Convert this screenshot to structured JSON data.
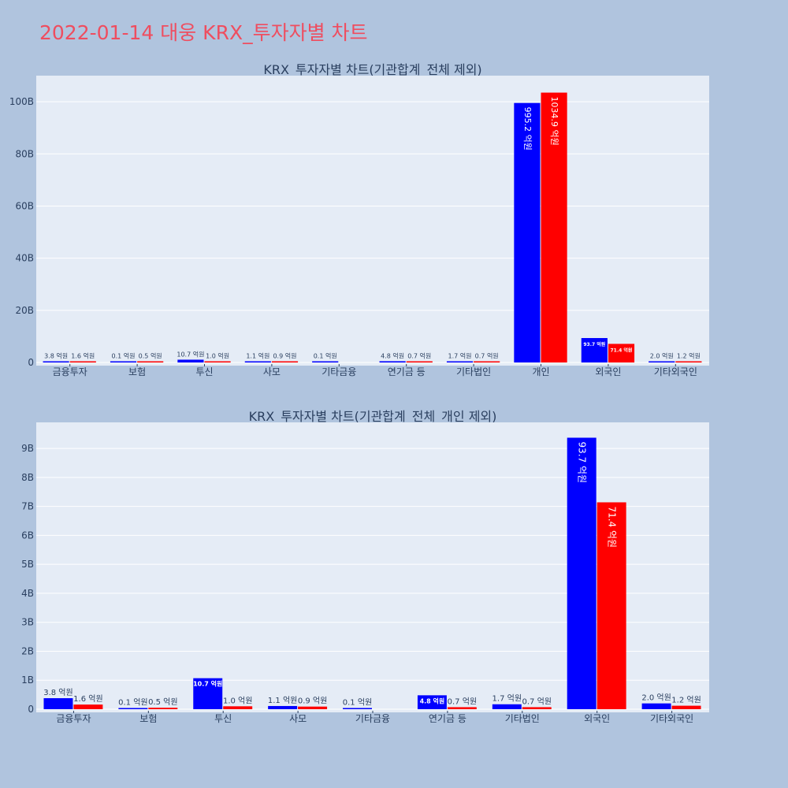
{
  "page": {
    "title": "2022-01-14 대웅 KRX_투자자별 차트"
  },
  "colors": {
    "background": "#b0c4de",
    "plot_bg": "#e5ecf6",
    "title": "#ef4d5f",
    "series_a": "#0000ff",
    "series_b": "#ff0000",
    "grid": "#ffffff",
    "text": "#2a3f5f"
  },
  "chart_data": [
    {
      "type": "bar",
      "title": "KRX_투자자별 차트(기관합계_전체 제외)",
      "categories": [
        "금융투자",
        "보험",
        "투신",
        "사모",
        "기타금융",
        "연기금 등",
        "기타법인",
        "개인",
        "외국인",
        "기타외국인"
      ],
      "series": [
        {
          "color": "#0000ff",
          "values": [
            0.38,
            0.01,
            1.07,
            0.11,
            0.01,
            0.48,
            0.17,
            99.52,
            9.37,
            0.2
          ],
          "labels": [
            "3.8 억원",
            "0.1 억원",
            "10.7 억원",
            "1.1 억원",
            "0.1 억원",
            "4.8 억원",
            "1.7 억원",
            "995.2 억원",
            "93.7 억원",
            "2.0 억원"
          ]
        },
        {
          "color": "#ff0000",
          "values": [
            0.16,
            0.05,
            0.1,
            0.09,
            null,
            0.07,
            0.07,
            103.49,
            7.14,
            0.12
          ],
          "labels": [
            "1.6 억원",
            "0.5 억원",
            "1.0 억원",
            "0.9 억원",
            "",
            "0.7 억원",
            "0.7 억원",
            "1034.9 억원",
            "71.4 억원",
            "1.2 억원"
          ]
        }
      ],
      "y_unit": "B",
      "ylim": [
        0,
        110
      ],
      "yticks": [
        0,
        20,
        40,
        60,
        80,
        100
      ],
      "ytick_labels": [
        "0",
        "20B",
        "40B",
        "60B",
        "80B",
        "100B"
      ],
      "grid": true
    },
    {
      "type": "bar",
      "title": "KRX_투자자별 차트(기관합계_전체_개인 제외)",
      "categories": [
        "금융투자",
        "보험",
        "투신",
        "사모",
        "기타금융",
        "연기금 등",
        "기타법인",
        "외국인",
        "기타외국인"
      ],
      "series": [
        {
          "color": "#0000ff",
          "values": [
            0.38,
            0.01,
            1.07,
            0.11,
            0.01,
            0.48,
            0.17,
            9.37,
            0.2
          ],
          "labels": [
            "3.8 억원",
            "0.1 억원",
            "10.7 억원",
            "1.1 억원",
            "0.1 억원",
            "4.8 억원",
            "1.7 억원",
            "93.7 억원",
            "2.0 억원"
          ]
        },
        {
          "color": "#ff0000",
          "values": [
            0.16,
            0.05,
            0.1,
            0.09,
            null,
            0.07,
            0.07,
            7.14,
            0.12
          ],
          "labels": [
            "1.6 억원",
            "0.5 억원",
            "1.0 억원",
            "0.9 억원",
            "",
            "0.7 억원",
            "0.7 억원",
            "71.4 억원",
            "1.2 억원"
          ]
        }
      ],
      "y_unit": "B",
      "ylim": [
        0,
        9.9
      ],
      "yticks": [
        0,
        1,
        2,
        3,
        4,
        5,
        6,
        7,
        8,
        9
      ],
      "ytick_labels": [
        "0",
        "1B",
        "2B",
        "3B",
        "4B",
        "5B",
        "6B",
        "7B",
        "8B",
        "9B"
      ],
      "grid": true
    }
  ]
}
